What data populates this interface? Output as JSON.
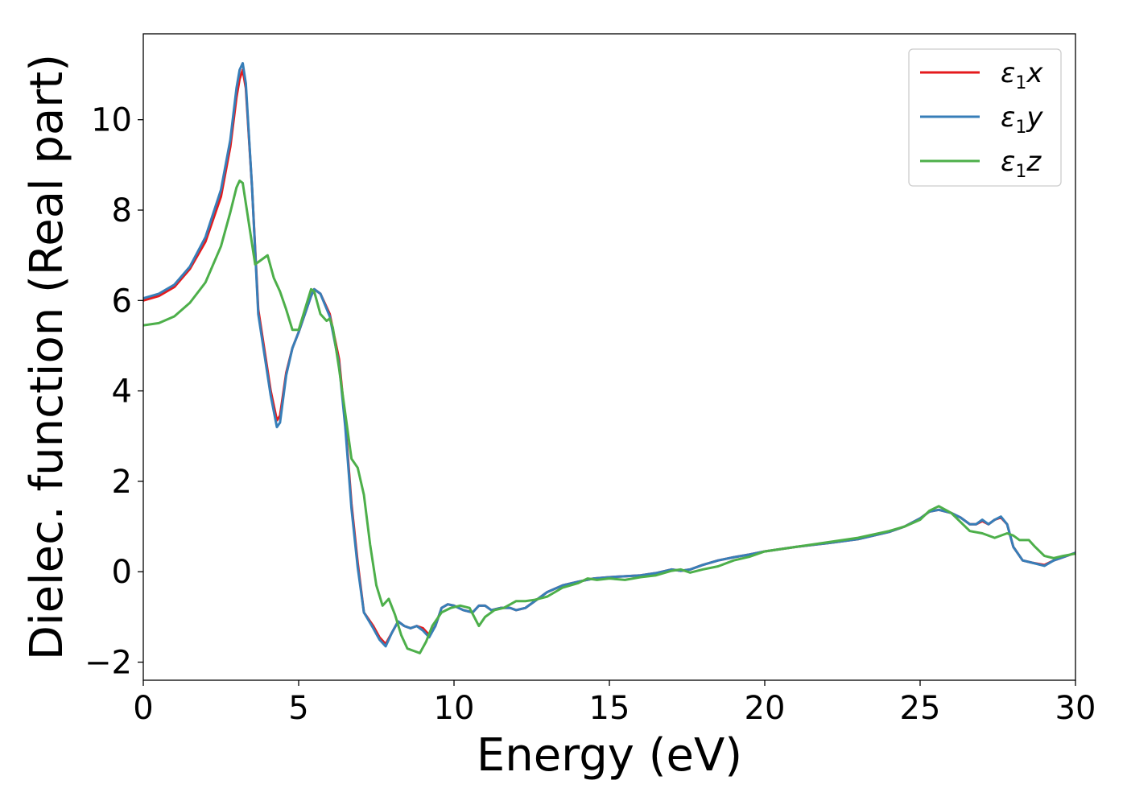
{
  "chart_data": {
    "type": "line",
    "title": "",
    "xlabel": "Energy (eV)",
    "ylabel": "Dielec. function (Real part)",
    "xlim": [
      0,
      30
    ],
    "ylim": [
      -2.4,
      11.9
    ],
    "xticks": [
      0,
      5,
      10,
      15,
      20,
      25,
      30
    ],
    "xtick_labels": [
      "0",
      "5",
      "10",
      "15",
      "20",
      "25",
      "30"
    ],
    "yticks": [
      -2,
      0,
      2,
      4,
      6,
      8,
      10
    ],
    "ytick_labels": [
      "−2",
      "0",
      "2",
      "4",
      "6",
      "8",
      "10"
    ],
    "grid": false,
    "legend_position": "top-right",
    "series": [
      {
        "name": "ε1x",
        "symbol": "ε",
        "subscript": "1",
        "component": "x",
        "color": "#e41a1c",
        "x": [
          0,
          0.5,
          1,
          1.5,
          2,
          2.5,
          2.8,
          3.0,
          3.1,
          3.2,
          3.3,
          3.5,
          3.7,
          3.9,
          4.1,
          4.3,
          4.4,
          4.6,
          4.8,
          5.0,
          5.2,
          5.4,
          5.5,
          5.7,
          6.0,
          6.3,
          6.5,
          6.7,
          6.9,
          7.1,
          7.4,
          7.6,
          7.8,
          8.0,
          8.2,
          8.4,
          8.6,
          8.8,
          9.0,
          9.2,
          9.4,
          9.6,
          9.8,
          10.0,
          10.3,
          10.6,
          10.8,
          11.0,
          11.2,
          11.5,
          11.8,
          12.0,
          12.3,
          12.6,
          13.0,
          13.5,
          14.0,
          14.5,
          15.0,
          15.5,
          16.0,
          16.5,
          17.0,
          17.3,
          17.6,
          18.0,
          18.5,
          19.0,
          19.5,
          20.0,
          21.0,
          22.0,
          23.0,
          24.0,
          24.5,
          25.0,
          25.3,
          25.6,
          26.0,
          26.3,
          26.6,
          26.8,
          27.0,
          27.2,
          27.4,
          27.6,
          27.8,
          28.0,
          28.3,
          28.6,
          29.0,
          29.3,
          29.6,
          30.0
        ],
        "y": [
          6.0,
          6.1,
          6.3,
          6.7,
          7.3,
          8.3,
          9.4,
          10.5,
          10.9,
          11.1,
          10.7,
          8.5,
          5.8,
          4.9,
          4.0,
          3.35,
          3.45,
          4.4,
          4.95,
          5.3,
          5.7,
          6.1,
          6.25,
          6.15,
          5.7,
          4.7,
          3.3,
          1.5,
          0.2,
          -0.9,
          -1.2,
          -1.45,
          -1.6,
          -1.35,
          -1.1,
          -1.2,
          -1.25,
          -1.2,
          -1.25,
          -1.4,
          -1.2,
          -0.8,
          -0.72,
          -0.75,
          -0.85,
          -0.9,
          -0.75,
          -0.75,
          -0.85,
          -0.8,
          -0.8,
          -0.85,
          -0.8,
          -0.65,
          -0.45,
          -0.3,
          -0.22,
          -0.15,
          -0.12,
          -0.1,
          -0.08,
          -0.03,
          0.05,
          0.02,
          0.05,
          0.15,
          0.25,
          0.32,
          0.38,
          0.45,
          0.55,
          0.63,
          0.72,
          0.88,
          1.0,
          1.18,
          1.33,
          1.37,
          1.3,
          1.2,
          1.05,
          1.05,
          1.12,
          1.05,
          1.15,
          1.2,
          1.05,
          0.55,
          0.25,
          0.2,
          0.15,
          0.25,
          0.32,
          0.42
        ]
      },
      {
        "name": "ε1y",
        "symbol": "ε",
        "subscript": "1",
        "component": "y",
        "color": "#377eb8",
        "x": [
          0,
          0.5,
          1,
          1.5,
          2,
          2.5,
          2.8,
          3.0,
          3.1,
          3.2,
          3.3,
          3.5,
          3.7,
          3.9,
          4.1,
          4.3,
          4.4,
          4.6,
          4.8,
          5.0,
          5.2,
          5.4,
          5.5,
          5.7,
          6.0,
          6.3,
          6.5,
          6.7,
          6.9,
          7.1,
          7.4,
          7.6,
          7.8,
          8.0,
          8.2,
          8.4,
          8.6,
          8.8,
          9.0,
          9.2,
          9.4,
          9.6,
          9.8,
          10.0,
          10.3,
          10.6,
          10.8,
          11.0,
          11.2,
          11.5,
          11.8,
          12.0,
          12.3,
          12.6,
          13.0,
          13.5,
          14.0,
          14.5,
          15.0,
          15.5,
          16.0,
          16.5,
          17.0,
          17.3,
          17.6,
          18.0,
          18.5,
          19.0,
          19.5,
          20.0,
          21.0,
          22.0,
          23.0,
          24.0,
          24.5,
          25.0,
          25.3,
          25.6,
          26.0,
          26.3,
          26.6,
          26.8,
          27.0,
          27.2,
          27.4,
          27.6,
          27.8,
          28.0,
          28.3,
          28.6,
          29.0,
          29.3,
          29.6,
          30.0
        ],
        "y": [
          6.05,
          6.15,
          6.35,
          6.75,
          7.4,
          8.45,
          9.55,
          10.7,
          11.1,
          11.25,
          10.8,
          8.5,
          5.7,
          4.8,
          3.9,
          3.2,
          3.3,
          4.35,
          4.95,
          5.3,
          5.7,
          6.1,
          6.25,
          6.15,
          5.65,
          4.6,
          3.2,
          1.4,
          0.1,
          -0.9,
          -1.25,
          -1.5,
          -1.65,
          -1.35,
          -1.1,
          -1.2,
          -1.25,
          -1.2,
          -1.3,
          -1.45,
          -1.2,
          -0.8,
          -0.72,
          -0.75,
          -0.85,
          -0.9,
          -0.75,
          -0.75,
          -0.85,
          -0.8,
          -0.8,
          -0.85,
          -0.8,
          -0.65,
          -0.45,
          -0.3,
          -0.22,
          -0.15,
          -0.12,
          -0.1,
          -0.08,
          -0.03,
          0.05,
          0.02,
          0.05,
          0.15,
          0.25,
          0.32,
          0.38,
          0.45,
          0.55,
          0.63,
          0.72,
          0.88,
          1.0,
          1.18,
          1.33,
          1.37,
          1.3,
          1.2,
          1.05,
          1.05,
          1.15,
          1.05,
          1.15,
          1.22,
          1.05,
          0.55,
          0.25,
          0.2,
          0.13,
          0.25,
          0.32,
          0.42
        ]
      },
      {
        "name": "ε1z",
        "symbol": "ε",
        "subscript": "1",
        "component": "z",
        "color": "#4daf4a",
        "x": [
          0,
          0.5,
          1,
          1.5,
          2,
          2.5,
          2.8,
          3.0,
          3.1,
          3.2,
          3.4,
          3.6,
          3.8,
          4.0,
          4.2,
          4.4,
          4.6,
          4.8,
          5.0,
          5.2,
          5.4,
          5.5,
          5.7,
          5.9,
          6.0,
          6.1,
          6.3,
          6.5,
          6.7,
          6.9,
          7.1,
          7.3,
          7.5,
          7.7,
          7.9,
          8.1,
          8.3,
          8.5,
          8.7,
          8.9,
          9.1,
          9.3,
          9.6,
          9.9,
          10.2,
          10.5,
          10.8,
          11.0,
          11.3,
          11.6,
          12.0,
          12.3,
          12.6,
          13.0,
          13.5,
          14.0,
          14.3,
          14.6,
          15.0,
          15.5,
          16.0,
          16.5,
          17.0,
          17.3,
          17.6,
          18.0,
          18.5,
          19.0,
          19.5,
          20.0,
          21.0,
          22.0,
          23.0,
          24.0,
          24.5,
          25.0,
          25.3,
          25.6,
          26.0,
          26.3,
          26.6,
          27.0,
          27.4,
          27.8,
          28.0,
          28.2,
          28.5,
          28.7,
          29.0,
          29.3,
          29.6,
          30.0
        ],
        "y": [
          5.45,
          5.5,
          5.65,
          5.95,
          6.4,
          7.2,
          7.95,
          8.5,
          8.65,
          8.6,
          7.7,
          6.8,
          6.9,
          7.0,
          6.5,
          6.2,
          5.8,
          5.35,
          5.35,
          5.8,
          6.25,
          6.2,
          5.7,
          5.55,
          5.6,
          5.4,
          4.5,
          3.5,
          2.5,
          2.3,
          1.7,
          0.6,
          -0.3,
          -0.75,
          -0.6,
          -0.95,
          -1.4,
          -1.7,
          -1.75,
          -1.8,
          -1.55,
          -1.2,
          -0.9,
          -0.8,
          -0.75,
          -0.8,
          -1.2,
          -1.0,
          -0.85,
          -0.8,
          -0.65,
          -0.65,
          -0.62,
          -0.55,
          -0.35,
          -0.25,
          -0.15,
          -0.18,
          -0.15,
          -0.18,
          -0.12,
          -0.08,
          0.02,
          0.05,
          -0.02,
          0.05,
          0.12,
          0.25,
          0.33,
          0.45,
          0.55,
          0.65,
          0.75,
          0.9,
          1.0,
          1.15,
          1.35,
          1.45,
          1.3,
          1.1,
          0.9,
          0.85,
          0.75,
          0.85,
          0.8,
          0.7,
          0.7,
          0.55,
          0.35,
          0.3,
          0.35,
          0.4
        ]
      }
    ]
  }
}
